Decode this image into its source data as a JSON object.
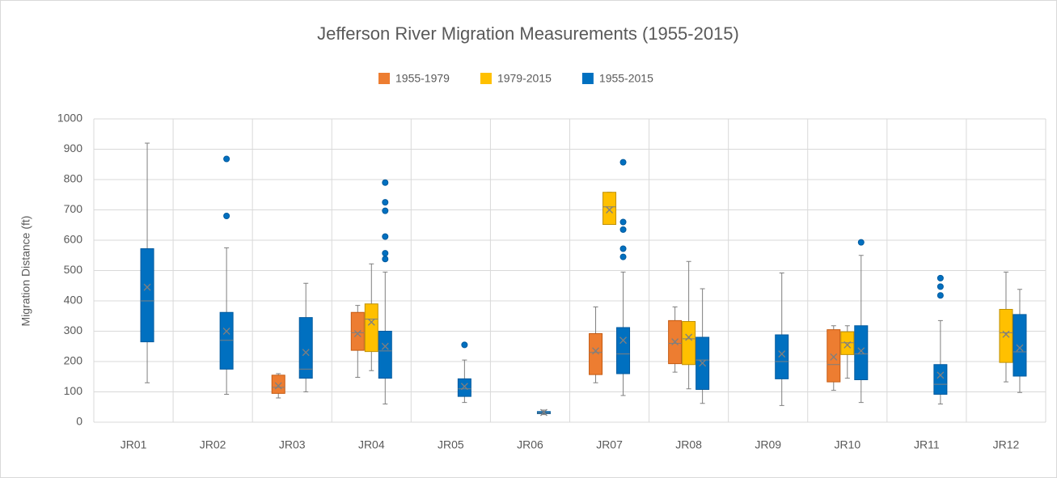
{
  "chart_data": {
    "type": "box",
    "title": "Jefferson River Migration Measurements (1955-2015)",
    "y_label": "Migration Distance (ft)",
    "categories": [
      "JR01",
      "JR02",
      "JR03",
      "JR04",
      "JR05",
      "JR06",
      "JR07",
      "JR08",
      "JR09",
      "JR10",
      "JR11",
      "JR12"
    ],
    "ylim": [
      0,
      1000
    ],
    "yticks": [
      0,
      100,
      200,
      300,
      400,
      500,
      600,
      700,
      800,
      900,
      1000
    ],
    "grid": true,
    "legend": "top",
    "series": [
      {
        "name": "1955-1979",
        "color": "#ed7d31",
        "values": [
          null,
          null,
          {
            "min": 80,
            "q1": 95,
            "median": 115,
            "q3": 155,
            "max": 160,
            "mean": 120,
            "outliers": []
          },
          {
            "min": 148,
            "q1": 237,
            "median": 295,
            "q3": 362,
            "max": 385,
            "mean": 292,
            "outliers": []
          },
          null,
          null,
          {
            "min": 130,
            "q1": 157,
            "median": 230,
            "q3": 292,
            "max": 380,
            "mean": 235,
            "outliers": []
          },
          {
            "min": 165,
            "q1": 193,
            "median": 260,
            "q3": 335,
            "max": 380,
            "mean": 265,
            "outliers": []
          },
          null,
          {
            "min": 105,
            "q1": 133,
            "median": 190,
            "q3": 305,
            "max": 318,
            "mean": 215,
            "outliers": []
          },
          null,
          null
        ]
      },
      {
        "name": "1979-2015",
        "color": "#ffc000",
        "values": [
          null,
          null,
          null,
          {
            "min": 170,
            "q1": 233,
            "median": 340,
            "q3": 390,
            "max": 522,
            "mean": 330,
            "outliers": []
          },
          null,
          null,
          {
            "min": 652,
            "q1": 652,
            "median": 710,
            "q3": 758,
            "max": 758,
            "mean": 700,
            "outliers": []
          },
          {
            "min": 110,
            "q1": 190,
            "median": 275,
            "q3": 332,
            "max": 530,
            "mean": 280,
            "outliers": []
          },
          null,
          {
            "min": 145,
            "q1": 223,
            "median": 262,
            "q3": 298,
            "max": 318,
            "mean": 255,
            "outliers": []
          },
          null,
          {
            "min": 133,
            "q1": 197,
            "median": 295,
            "q3": 372,
            "max": 495,
            "mean": 290,
            "outliers": []
          }
        ]
      },
      {
        "name": "1955-2015",
        "color": "#0070c0",
        "values": [
          {
            "min": 130,
            "q1": 265,
            "median": 400,
            "q3": 572,
            "max": 920,
            "mean": 445,
            "outliers": []
          },
          {
            "min": 92,
            "q1": 175,
            "median": 270,
            "q3": 362,
            "max": 575,
            "mean": 300,
            "outliers": [
              680,
              868
            ]
          },
          {
            "min": 100,
            "q1": 145,
            "median": 175,
            "q3": 345,
            "max": 458,
            "mean": 230,
            "outliers": []
          },
          {
            "min": 60,
            "q1": 145,
            "median": 235,
            "q3": 300,
            "max": 495,
            "mean": 250,
            "outliers": [
              538,
              557,
              612,
              697,
              725,
              790
            ]
          },
          {
            "min": 65,
            "q1": 85,
            "median": 110,
            "q3": 143,
            "max": 205,
            "mean": 118,
            "outliers": [
              255
            ]
          },
          {
            "min": 25,
            "q1": 28,
            "median": 30,
            "q3": 35,
            "max": 40,
            "mean": 32,
            "outliers": []
          },
          {
            "min": 88,
            "q1": 160,
            "median": 225,
            "q3": 312,
            "max": 495,
            "mean": 270,
            "outliers": [
              545,
              572,
              635,
              660,
              857
            ]
          },
          {
            "min": 62,
            "q1": 108,
            "median": 205,
            "q3": 280,
            "max": 440,
            "mean": 195,
            "outliers": []
          },
          {
            "min": 55,
            "q1": 143,
            "median": 200,
            "q3": 288,
            "max": 492,
            "mean": 225,
            "outliers": []
          },
          {
            "min": 65,
            "q1": 140,
            "median": 225,
            "q3": 318,
            "max": 550,
            "mean": 235,
            "outliers": [
              593
            ]
          },
          {
            "min": 60,
            "q1": 92,
            "median": 125,
            "q3": 190,
            "max": 335,
            "mean": 155,
            "outliers": [
              418,
              447,
              475
            ]
          },
          {
            "min": 98,
            "q1": 152,
            "median": 232,
            "q3": 355,
            "max": 438,
            "mean": 245,
            "outliers": []
          }
        ]
      }
    ]
  }
}
